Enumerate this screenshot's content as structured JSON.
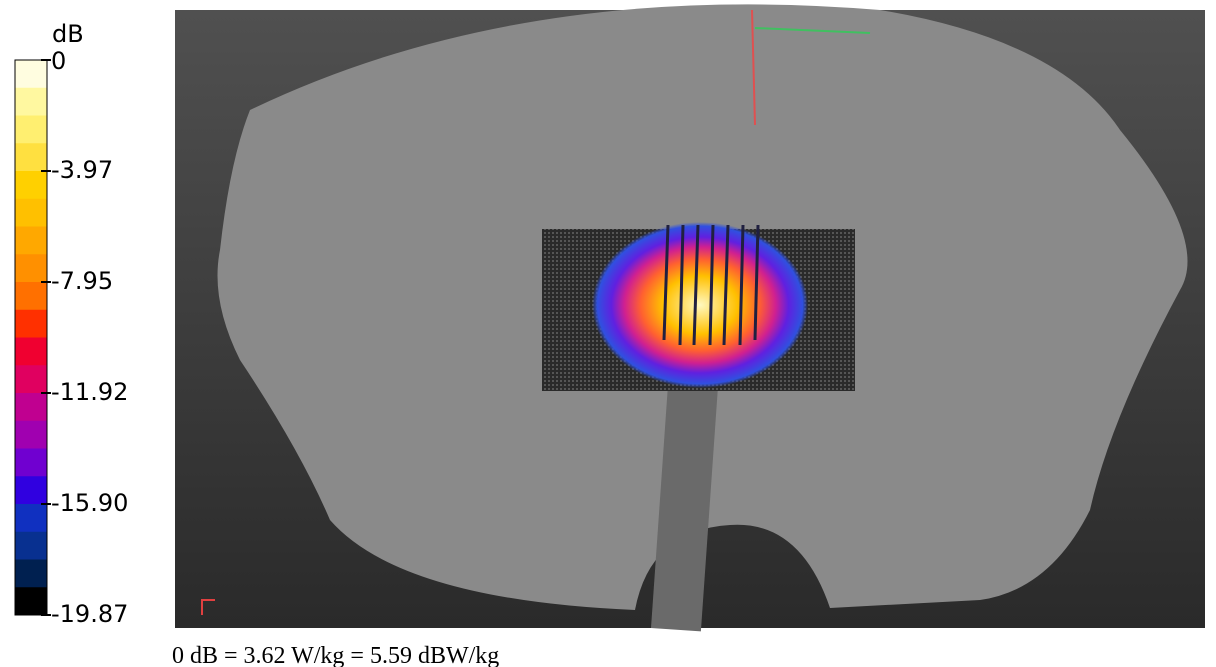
{
  "colorbar": {
    "unit": "dB",
    "ticks": [
      "0",
      "-3.97",
      "-7.95",
      "-11.92",
      "-15.90",
      "-19.87"
    ],
    "colors": [
      "#fffde0",
      "#fff8a0",
      "#ffef70",
      "#ffe040",
      "#ffd000",
      "#ffc000",
      "#ffa800",
      "#ff9000",
      "#ff7000",
      "#ff3000",
      "#f00030",
      "#e00060",
      "#c00090",
      "#a000b0",
      "#7000d0",
      "#3000e0",
      "#1030c0",
      "#083090",
      "#002050",
      "#000000"
    ]
  },
  "caption": "0 dB = 3.62 W/kg = 5.59 dBW/kg"
}
